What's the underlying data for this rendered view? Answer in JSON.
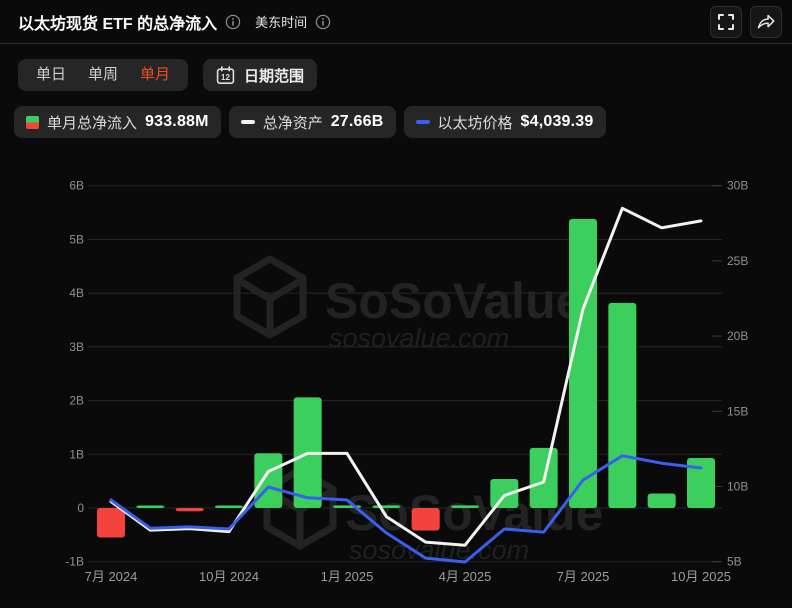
{
  "header": {
    "title": "以太坊现货 ETF 的总净流入",
    "timezone": "美东时间"
  },
  "toolbar": {
    "tabs": [
      {
        "label": "单日",
        "active": false
      },
      {
        "label": "单周",
        "active": false
      },
      {
        "label": "单月",
        "active": true
      }
    ],
    "date_range": {
      "label": "日期范围",
      "calendar_day": "12"
    }
  },
  "legend": [
    {
      "label": "单月总净流入",
      "value": "933.88M",
      "swatch": "green-red-split"
    },
    {
      "label": "总净资产",
      "value": "27.66B",
      "swatch": "#f2f2f2"
    },
    {
      "label": "以太坊价格",
      "value": "$4,039.39",
      "swatch": "#3a5fef"
    }
  ],
  "watermark": {
    "brand": "SoSoValue",
    "domain": "sosovalue.com"
  },
  "colors": {
    "positive": "#3ccf5e",
    "negative": "#f4433c",
    "net_assets_line": "#f2f2f2",
    "price_line": "#3a5fef",
    "active_tab": "#ee4e27",
    "grid": "#272727",
    "axis_text": "#8f8f8f"
  },
  "chart_data": {
    "type": "bar+line combo",
    "x": [
      "2024-07",
      "2024-08",
      "2024-09",
      "2024-10",
      "2024-11",
      "2024-12",
      "2025-01",
      "2025-02",
      "2025-03",
      "2025-04",
      "2025-05",
      "2025-06",
      "2025-07",
      "2025-08",
      "2025-09",
      "2025-10"
    ],
    "x_tick_labels": [
      {
        "index": 0,
        "label": "7月 2024"
      },
      {
        "index": 3,
        "label": "10月 2024"
      },
      {
        "index": 6,
        "label": "1月 2025"
      },
      {
        "index": 9,
        "label": "4月 2025"
      },
      {
        "index": 12,
        "label": "7月 2025"
      },
      {
        "index": 15,
        "label": "10月 2025"
      }
    ],
    "series": [
      {
        "name": "单月总净流入",
        "type": "bar",
        "axis": "left",
        "unit": "B USD",
        "values": [
          -0.55,
          0.03,
          -0.06,
          0.04,
          1.02,
          2.06,
          0.05,
          0.05,
          -0.42,
          0.05,
          0.54,
          1.12,
          5.38,
          3.82,
          0.27,
          0.93
        ]
      },
      {
        "name": "总净资产",
        "type": "line",
        "axis": "right",
        "unit": "B USD",
        "values": [
          9.0,
          7.1,
          7.2,
          7.0,
          11.0,
          12.2,
          12.2,
          8.0,
          6.3,
          6.1,
          9.4,
          10.3,
          21.8,
          28.5,
          27.2,
          27.66
        ]
      },
      {
        "name": "以太坊价格",
        "type": "line",
        "axis": "price-hidden",
        "unit": "USD",
        "values": [
          3300,
          2650,
          2680,
          2630,
          3600,
          3350,
          3300,
          2540,
          1960,
          1870,
          2630,
          2560,
          3760,
          4320,
          4150,
          4039.39
        ]
      }
    ],
    "left_axis": {
      "min": -1,
      "max": 6,
      "tick_step": 1,
      "tick_labels": [
        "6B",
        "5B",
        "4B",
        "3B",
        "2B",
        "1B",
        "0",
        "-1B"
      ]
    },
    "right_axis": {
      "min": 5,
      "max": 30,
      "tick_step": 5,
      "tick_labels": [
        "30B",
        "25B",
        "20B",
        "15B",
        "10B",
        "5B"
      ]
    },
    "price_axis": {
      "min": 1500,
      "max": 4500,
      "visible": false
    },
    "grid": true,
    "legend_position": "top"
  }
}
